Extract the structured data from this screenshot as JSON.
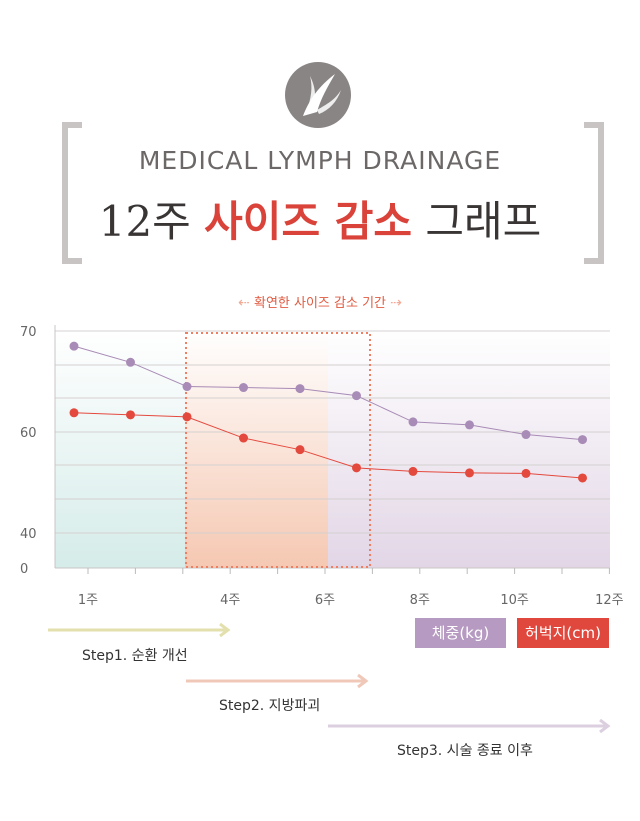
{
  "header": {
    "subtitle": "MEDICAL LYMPH DRAINAGE",
    "title_prefix": "12주",
    "title_highlight": "사이즈 감소",
    "title_suffix": "그래프"
  },
  "period_label": "확연한 사이즈 감소 기간",
  "chart_data": {
    "type": "line",
    "ylim": [
      0,
      70
    ],
    "y_ticks": [
      "70",
      "60",
      "40",
      "0"
    ],
    "x_ticks": [
      "1주",
      "4주",
      "6주",
      "8주",
      "10주",
      "12주"
    ],
    "series": [
      {
        "name": "체중(kg)",
        "color": "#a88bb6",
        "values": [
          68.5,
          66.9,
          64.5,
          64.4,
          64.3,
          63.6,
          61.0,
          60.7,
          59.5,
          58.5
        ]
      },
      {
        "name": "허벅지(cm)",
        "color": "#e4493e",
        "values": [
          61.9,
          61.7,
          61.5,
          58.8,
          56.5,
          52.9,
          52.2,
          51.9,
          51.8,
          50.9
        ]
      }
    ],
    "legend": "bottom-right",
    "grid": true
  },
  "legend": {
    "weight": "체중(kg)",
    "waist": "허벅지(cm)"
  },
  "steps": [
    {
      "label": "Step1. 순환 개선",
      "color": "#e3e0ae"
    },
    {
      "label": "Step2. 지방파괴",
      "color": "#f0c8b8"
    },
    {
      "label": "Step3. 시술 종료 이후",
      "color": "#dccfe0"
    }
  ]
}
